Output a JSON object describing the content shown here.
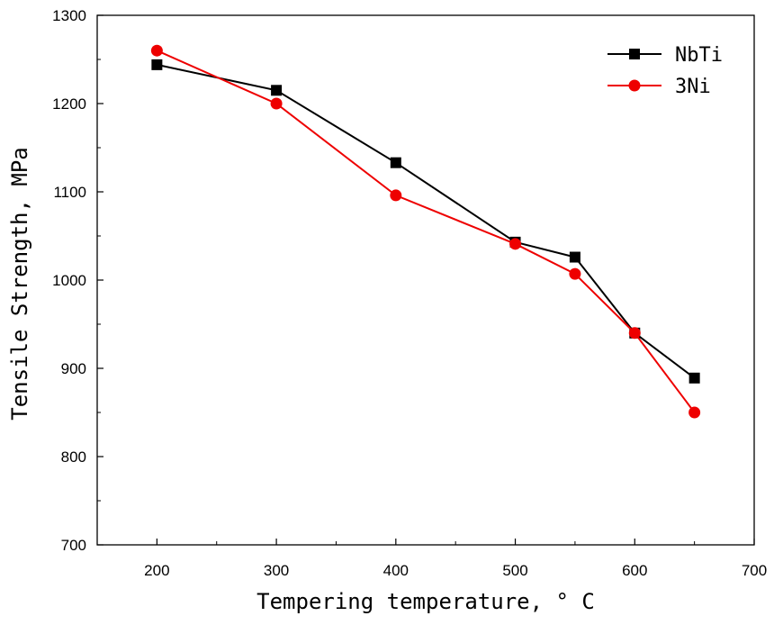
{
  "chart_data": {
    "type": "line",
    "xlabel": "Tempering temperature, ° C",
    "ylabel": "Tensile Strength, MPa",
    "xlim": [
      150,
      700
    ],
    "ylim": [
      700,
      1300
    ],
    "x_ticks": [
      200,
      300,
      400,
      500,
      600,
      700
    ],
    "y_ticks": [
      700,
      800,
      900,
      1000,
      1100,
      1200,
      1300
    ],
    "x_tick_labels": [
      "200",
      "300",
      "400",
      "500",
      "600",
      "700"
    ],
    "y_tick_labels": [
      "700",
      "800",
      "900",
      "1000",
      "1100",
      "1200",
      "1300"
    ],
    "grid": false,
    "legend_position": "top-right",
    "series": [
      {
        "name": "NbTi",
        "color": "#000000",
        "marker": "square",
        "x": [
          200,
          300,
          400,
          500,
          550,
          600,
          650
        ],
        "y": [
          1244,
          1215,
          1133,
          1043,
          1026,
          940,
          889
        ]
      },
      {
        "name": "3Ni",
        "color": "#ee0000",
        "marker": "circle",
        "x": [
          200,
          300,
          400,
          500,
          550,
          600,
          650
        ],
        "y": [
          1260,
          1200,
          1096,
          1041,
          1007,
          940,
          850
        ]
      }
    ]
  }
}
